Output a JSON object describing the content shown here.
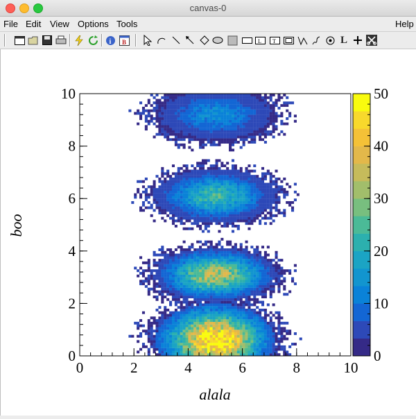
{
  "window": {
    "title": "canvas-0"
  },
  "menu": {
    "file": "File",
    "edit": "Edit",
    "view": "View",
    "options": "Options",
    "tools": "Tools",
    "help": "Help"
  },
  "toolbar": {
    "icons": [
      "new-canvas-icon",
      "open-folder-icon",
      "save-icon",
      "print-icon",
      "interrupt-icon",
      "refresh-icon",
      "inspect-icon",
      "browser-icon",
      "pointer-icon",
      "arc-icon",
      "line-icon",
      "arrow-icon",
      "diamond-icon",
      "ellipse-icon",
      "pad-icon",
      "pave-icon",
      "pave-label-icon",
      "pavetext-icon",
      "pavestext-icon",
      "polyline-icon",
      "curlyline-icon",
      "curlyarc-icon",
      "latex-icon",
      "marker-icon",
      "cut-icon"
    ]
  },
  "chart_data": {
    "type": "heatmap",
    "title": "",
    "xlabel": "alala",
    "ylabel": "boo",
    "xlim": [
      0,
      10
    ],
    "ylim": [
      0,
      10
    ],
    "x_ticks": [
      "0",
      "2",
      "4",
      "6",
      "8",
      "10"
    ],
    "y_ticks": [
      "0",
      "2",
      "4",
      "6",
      "8",
      "10"
    ],
    "colorbar": {
      "range": [
        0,
        50
      ],
      "ticks": [
        "0",
        "10",
        "20",
        "30",
        "40",
        "50"
      ],
      "colors": [
        "#352a87",
        "#2d49b8",
        "#1366d4",
        "#0a82d8",
        "#1295cf",
        "#1ba4c4",
        "#2cb0ae",
        "#4bba97",
        "#78bf7f",
        "#a2be6b",
        "#c6bb5b",
        "#e3b84a",
        "#f4c137",
        "#f8d92c",
        "#f9fb0e"
      ]
    },
    "blobs": [
      {
        "center_x": 5.0,
        "center_y": 0.6,
        "half_width_x": 2.2,
        "half_height_y": 1.4,
        "peak": 48
      },
      {
        "center_x": 5.0,
        "center_y": 3.1,
        "half_width_x": 2.2,
        "half_height_y": 1.0,
        "peak": 32
      },
      {
        "center_x": 5.0,
        "center_y": 6.1,
        "half_width_x": 2.2,
        "half_height_y": 1.0,
        "peak": 22
      },
      {
        "center_x": 5.0,
        "center_y": 9.2,
        "half_width_x": 2.2,
        "half_height_y": 1.0,
        "peak": 12
      }
    ]
  }
}
